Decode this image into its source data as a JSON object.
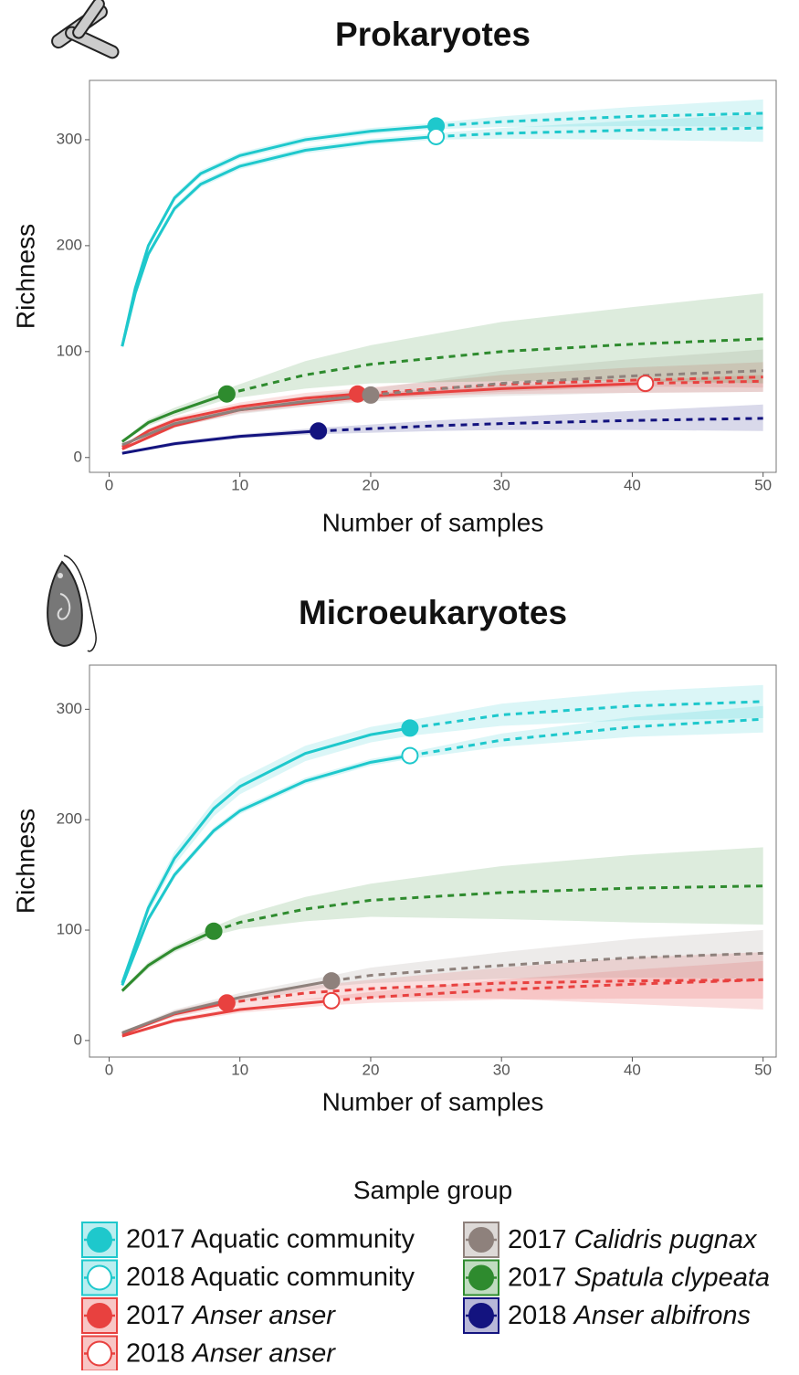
{
  "chart_data": [
    {
      "type": "line",
      "title": "Prokaryotes",
      "xlabel": "Number of samples",
      "ylabel": "Richness",
      "xlim": [
        -1.5,
        51
      ],
      "ylim": [
        -14,
        356
      ],
      "xticks": [
        0,
        10,
        20,
        30,
        40,
        50
      ],
      "yticks": [
        0,
        100,
        200,
        300
      ],
      "series": [
        {
          "name": "2017 Aquatic community",
          "italic_species": false,
          "color": "#1ec8cc",
          "filled": true,
          "x": [
            1,
            2,
            3,
            5,
            7,
            10,
            15,
            20,
            25,
            30,
            40,
            50
          ],
          "values": [
            105,
            160,
            200,
            245,
            268,
            285,
            300,
            308,
            313,
            317,
            322,
            325
          ],
          "lower": [
            103,
            157,
            197,
            242,
            265,
            282,
            297,
            305,
            310,
            312,
            313,
            312
          ],
          "upper": [
            107,
            163,
            203,
            248,
            271,
            288,
            303,
            311,
            316,
            322,
            331,
            338
          ],
          "marker": {
            "x": 25,
            "y": 313
          }
        },
        {
          "name": "2018 Aquatic community",
          "italic_species": false,
          "color": "#1ec8cc",
          "filled": false,
          "x": [
            1,
            2,
            3,
            5,
            7,
            10,
            15,
            20,
            25,
            30,
            40,
            50
          ],
          "values": [
            105,
            155,
            192,
            235,
            258,
            275,
            290,
            298,
            303,
            306,
            309,
            311
          ],
          "lower": [
            103,
            152,
            189,
            232,
            255,
            272,
            287,
            295,
            300,
            301,
            300,
            298
          ],
          "upper": [
            107,
            158,
            195,
            238,
            261,
            278,
            293,
            301,
            306,
            311,
            318,
            324
          ],
          "marker": {
            "x": 25,
            "y": 303
          }
        },
        {
          "name": "2017 Anser anser",
          "italic_species": true,
          "color": "#e8413f",
          "filled": true,
          "x": [
            1,
            3,
            5,
            10,
            15,
            19,
            25,
            30,
            40,
            50
          ],
          "values": [
            10,
            25,
            35,
            48,
            56,
            60,
            65,
            69,
            73,
            76
          ],
          "lower": [
            9,
            23,
            32,
            44,
            51,
            55,
            58,
            60,
            61,
            62
          ],
          "upper": [
            11,
            27,
            38,
            52,
            61,
            65,
            72,
            78,
            85,
            90
          ],
          "marker": {
            "x": 19,
            "y": 60
          }
        },
        {
          "name": "2018 Anser anser",
          "italic_species": true,
          "color": "#e8413f",
          "filled": false,
          "x": [
            1,
            5,
            10,
            20,
            30,
            41,
            50
          ],
          "values": [
            8,
            30,
            45,
            58,
            65,
            70,
            72
          ],
          "lower": [
            7,
            28,
            42,
            55,
            62,
            67,
            66
          ],
          "upper": [
            9,
            32,
            48,
            61,
            68,
            73,
            78
          ],
          "marker": {
            "x": 41,
            "y": 70
          }
        },
        {
          "name": "2017 Calidris pugnax",
          "italic_species": true,
          "color": "#8e817c",
          "filled": true,
          "x": [
            1,
            5,
            10,
            15,
            20,
            30,
            40,
            50
          ],
          "values": [
            12,
            32,
            45,
            53,
            59,
            70,
            77,
            82
          ],
          "lower": [
            11,
            29,
            41,
            48,
            53,
            58,
            61,
            62
          ],
          "upper": [
            13,
            35,
            49,
            58,
            65,
            82,
            93,
            102
          ],
          "marker": {
            "x": 20,
            "y": 59
          }
        },
        {
          "name": "2017 Spatula clypeata",
          "italic_species": true,
          "color": "#2e8b2e",
          "filled": true,
          "x": [
            1,
            3,
            5,
            9,
            15,
            20,
            30,
            40,
            50
          ],
          "values": [
            15,
            33,
            43,
            60,
            78,
            88,
            100,
            107,
            112
          ],
          "lower": [
            14,
            30,
            39,
            55,
            65,
            70,
            72,
            72,
            70
          ],
          "upper": [
            16,
            36,
            47,
            65,
            91,
            106,
            128,
            142,
            155
          ],
          "marker": {
            "x": 9,
            "y": 60
          }
        },
        {
          "name": "2018 Anser albifrons",
          "italic_species": true,
          "color": "#13137f",
          "filled": true,
          "x": [
            1,
            5,
            10,
            16,
            25,
            30,
            40,
            50
          ],
          "values": [
            4,
            13,
            20,
            25,
            30,
            32,
            35,
            37
          ],
          "lower": [
            3,
            11,
            18,
            22,
            25,
            26,
            26,
            25
          ],
          "upper": [
            5,
            15,
            22,
            28,
            35,
            38,
            44,
            50
          ],
          "marker": {
            "x": 16,
            "y": 25
          }
        }
      ]
    },
    {
      "type": "line",
      "title": "Microeukaryotes",
      "xlabel": "Number of samples",
      "ylabel": "Richness",
      "xlim": [
        -1.5,
        51
      ],
      "ylim": [
        -15,
        340
      ],
      "xticks": [
        0,
        10,
        20,
        30,
        40,
        50
      ],
      "yticks": [
        0,
        100,
        200,
        300
      ],
      "series": [
        {
          "color": "#1ec8cc",
          "filled": true,
          "x": [
            1,
            3,
            5,
            8,
            10,
            15,
            20,
            23,
            30,
            40,
            50
          ],
          "values": [
            52,
            120,
            165,
            210,
            230,
            260,
            277,
            283,
            295,
            303,
            307
          ],
          "lower": [
            49,
            115,
            159,
            203,
            223,
            253,
            270,
            276,
            285,
            290,
            292
          ],
          "upper": [
            55,
            125,
            171,
            217,
            237,
            267,
            284,
            290,
            305,
            316,
            322
          ],
          "marker": {
            "x": 23,
            "y": 283
          }
        },
        {
          "color": "#1ec8cc",
          "filled": false,
          "x": [
            1,
            3,
            5,
            8,
            10,
            15,
            20,
            23,
            30,
            40,
            50
          ],
          "values": [
            50,
            110,
            150,
            190,
            208,
            235,
            252,
            258,
            272,
            284,
            291
          ],
          "lower": [
            48,
            107,
            147,
            187,
            205,
            232,
            249,
            255,
            266,
            275,
            279
          ],
          "upper": [
            52,
            113,
            153,
            193,
            211,
            238,
            255,
            261,
            278,
            293,
            303
          ],
          "marker": {
            "x": 23,
            "y": 258
          }
        },
        {
          "color": "#e8413f",
          "filled": true,
          "x": [
            1,
            5,
            9,
            15,
            20,
            30,
            40,
            50
          ],
          "values": [
            6,
            24,
            34,
            43,
            47,
            52,
            54,
            55
          ],
          "lower": [
            5,
            21,
            30,
            37,
            39,
            38,
            33,
            28
          ],
          "upper": [
            7,
            27,
            38,
            49,
            55,
            66,
            75,
            80
          ],
          "marker": {
            "x": 9,
            "y": 34
          }
        },
        {
          "color": "#e8413f",
          "filled": false,
          "x": [
            1,
            5,
            10,
            17,
            20,
            30,
            40,
            50
          ],
          "values": [
            4,
            18,
            28,
            36,
            39,
            46,
            51,
            55
          ],
          "lower": [
            3,
            16,
            25,
            32,
            34,
            37,
            38,
            38
          ],
          "upper": [
            5,
            20,
            31,
            40,
            44,
            55,
            64,
            72
          ],
          "marker": {
            "x": 17,
            "y": 36
          }
        },
        {
          "color": "#8e817c",
          "filled": true,
          "x": [
            1,
            5,
            10,
            17,
            20,
            30,
            40,
            50
          ],
          "values": [
            7,
            25,
            39,
            54,
            59,
            68,
            75,
            79
          ],
          "lower": [
            6,
            22,
            35,
            49,
            52,
            56,
            57,
            56
          ],
          "upper": [
            8,
            28,
            43,
            59,
            66,
            80,
            92,
            100
          ],
          "marker": {
            "x": 17,
            "y": 54
          }
        },
        {
          "color": "#2e8b2e",
          "filled": true,
          "x": [
            1,
            3,
            5,
            8,
            10,
            15,
            20,
            30,
            40,
            50
          ],
          "values": [
            45,
            68,
            83,
            99,
            107,
            119,
            127,
            134,
            138,
            140
          ],
          "lower": [
            43,
            65,
            80,
            95,
            101,
            108,
            112,
            110,
            107,
            105
          ],
          "upper": [
            47,
            71,
            86,
            103,
            113,
            130,
            142,
            158,
            168,
            175
          ],
          "marker": {
            "x": 8,
            "y": 99
          }
        }
      ]
    }
  ],
  "legend": {
    "title": "Sample group"
  }
}
